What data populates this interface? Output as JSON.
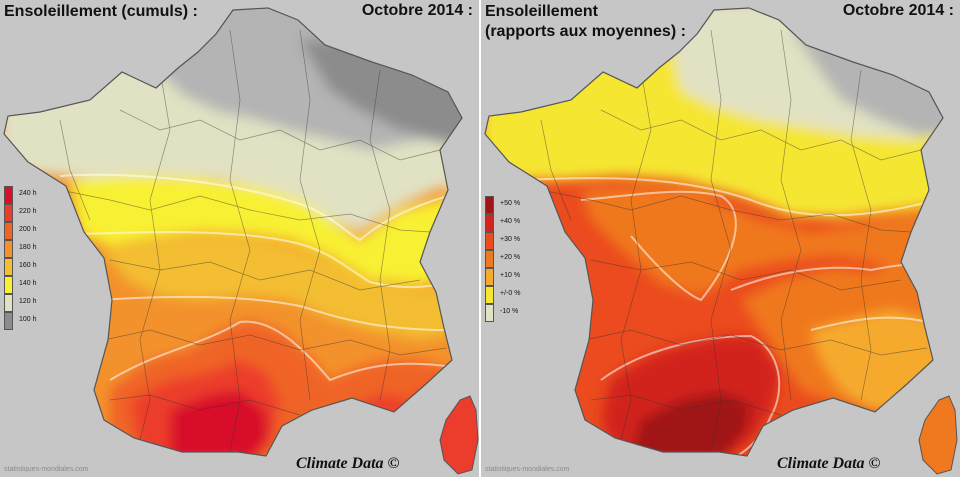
{
  "left_panel": {
    "title": "Ensoleillement (cumuls) :",
    "date": "Octobre 2014 :",
    "credit": "Climate Data ©",
    "source": "statistiques-mondiales.com",
    "legend": [
      {
        "label": "240 h",
        "color": "#d8102a"
      },
      {
        "label": "220 h",
        "color": "#ec3c2c"
      },
      {
        "label": "200 h",
        "color": "#f06428"
      },
      {
        "label": "180 h",
        "color": "#f3922c"
      },
      {
        "label": "160 h",
        "color": "#f3be30"
      },
      {
        "label": "140 h",
        "color": "#f8f032"
      },
      {
        "label": "120 h",
        "color": "#e1e1c3"
      },
      {
        "label": "100 h",
        "color": "#8c8c8c"
      }
    ]
  },
  "right_panel": {
    "title_line1": "Ensoleillement",
    "title_line2": "(rapports aux moyennes) :",
    "date": "Octobre 2014 :",
    "credit": "Climate Data ©",
    "source": "statistiques-mondiales.com",
    "legend": [
      {
        "label": "+50 %",
        "color": "#a01414"
      },
      {
        "label": "+40 %",
        "color": "#d2231e"
      },
      {
        "label": "+30 %",
        "color": "#eb4b1e"
      },
      {
        "label": "+20 %",
        "color": "#f0781e"
      },
      {
        "label": "+10 %",
        "color": "#f5aa2d"
      },
      {
        "label": "+/-0 %",
        "color": "#f5e632"
      },
      {
        "label": "-10 %",
        "color": "#e1e1c3"
      }
    ]
  }
}
